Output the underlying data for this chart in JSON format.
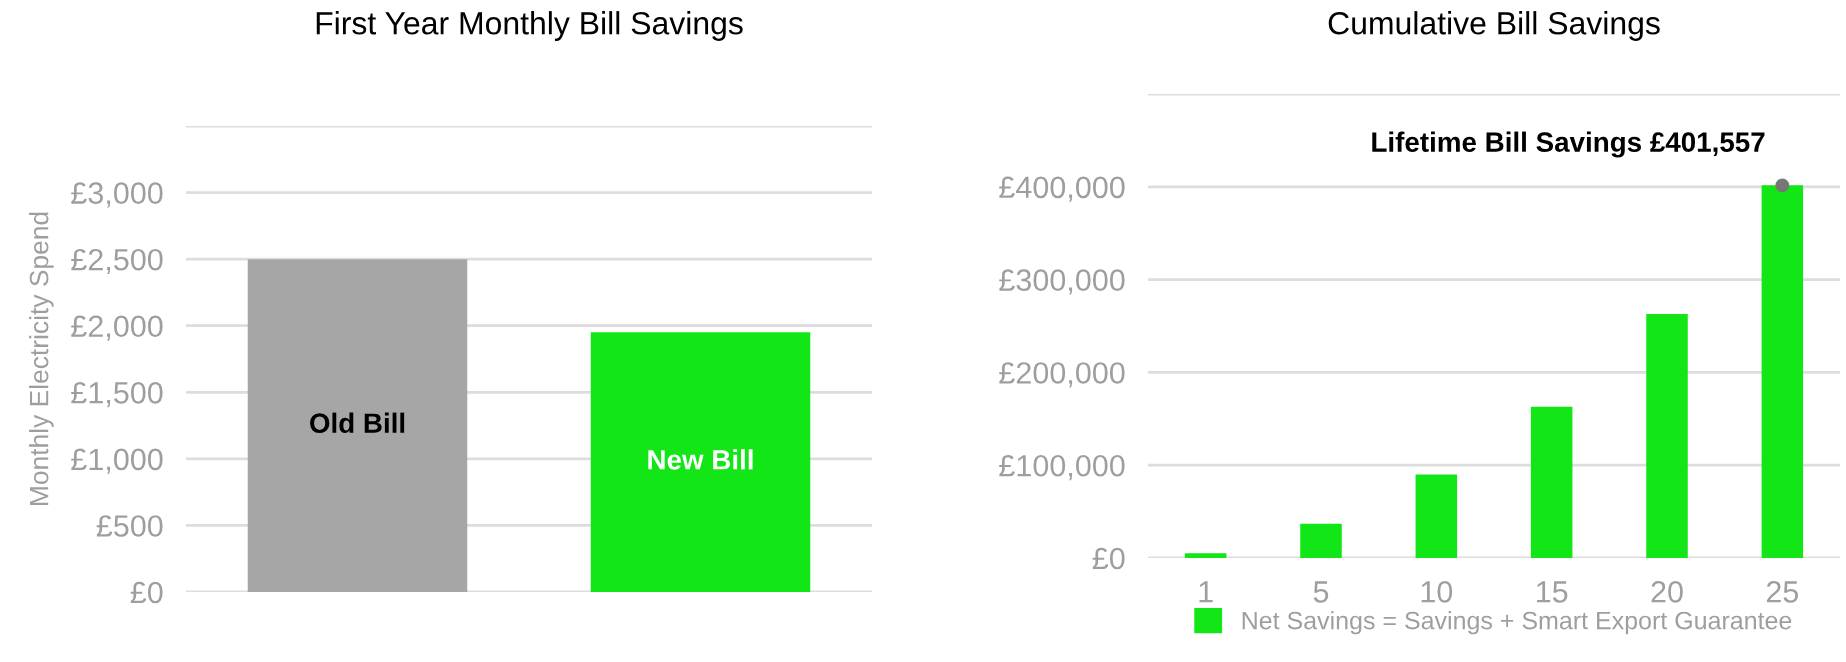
{
  "chart_data": [
    {
      "type": "bar",
      "title": "First Year Monthly Bill Savings",
      "ylabel": "Monthly Electricity Spend",
      "categories": [
        null,
        null
      ],
      "series": [
        {
          "name": "Old Bill",
          "color": "#a6a6a6",
          "values": [
            2500,
            null
          ]
        },
        {
          "name": "New Bill",
          "color": "#13e617",
          "values": [
            null,
            1950
          ]
        }
      ],
      "ylim": [
        0,
        3500
      ],
      "yticks": [
        {
          "value": 0,
          "label": "£0"
        },
        {
          "value": 500,
          "label": "£500"
        },
        {
          "value": 1000,
          "label": "£1,000"
        },
        {
          "value": 1500,
          "label": "£1,500"
        },
        {
          "value": 2000,
          "label": "£2,000"
        },
        {
          "value": 2500,
          "label": "£2,500"
        },
        {
          "value": 3000,
          "label": "£3,000"
        },
        {
          "value": 3500,
          "label": null
        }
      ],
      "grid": "y"
    },
    {
      "type": "bar",
      "title": "Cumulative Bill Savings",
      "categories": [
        "1",
        "5",
        "10",
        "15",
        "20",
        "25"
      ],
      "series": [
        {
          "name": "Net Savings = Savings + Smart Export Guarantee",
          "color": "#13e617",
          "values": [
            5000,
            37000,
            90000,
            163000,
            263000,
            401557
          ]
        }
      ],
      "ylim": [
        0,
        500000
      ],
      "yticks": [
        {
          "value": 0,
          "label": "£0"
        },
        {
          "value": 100000,
          "label": "£100,000"
        },
        {
          "value": 200000,
          "label": "£200,000"
        },
        {
          "value": 300000,
          "label": "£300,000"
        },
        {
          "value": 400000,
          "label": "£400,000"
        },
        {
          "value": 500000,
          "label": null
        }
      ],
      "annotations": [
        {
          "text": "Lifetime Bill Savings £401,557",
          "x": "25",
          "y": 401557
        }
      ],
      "grid": "y",
      "legend": "bottom"
    }
  ]
}
